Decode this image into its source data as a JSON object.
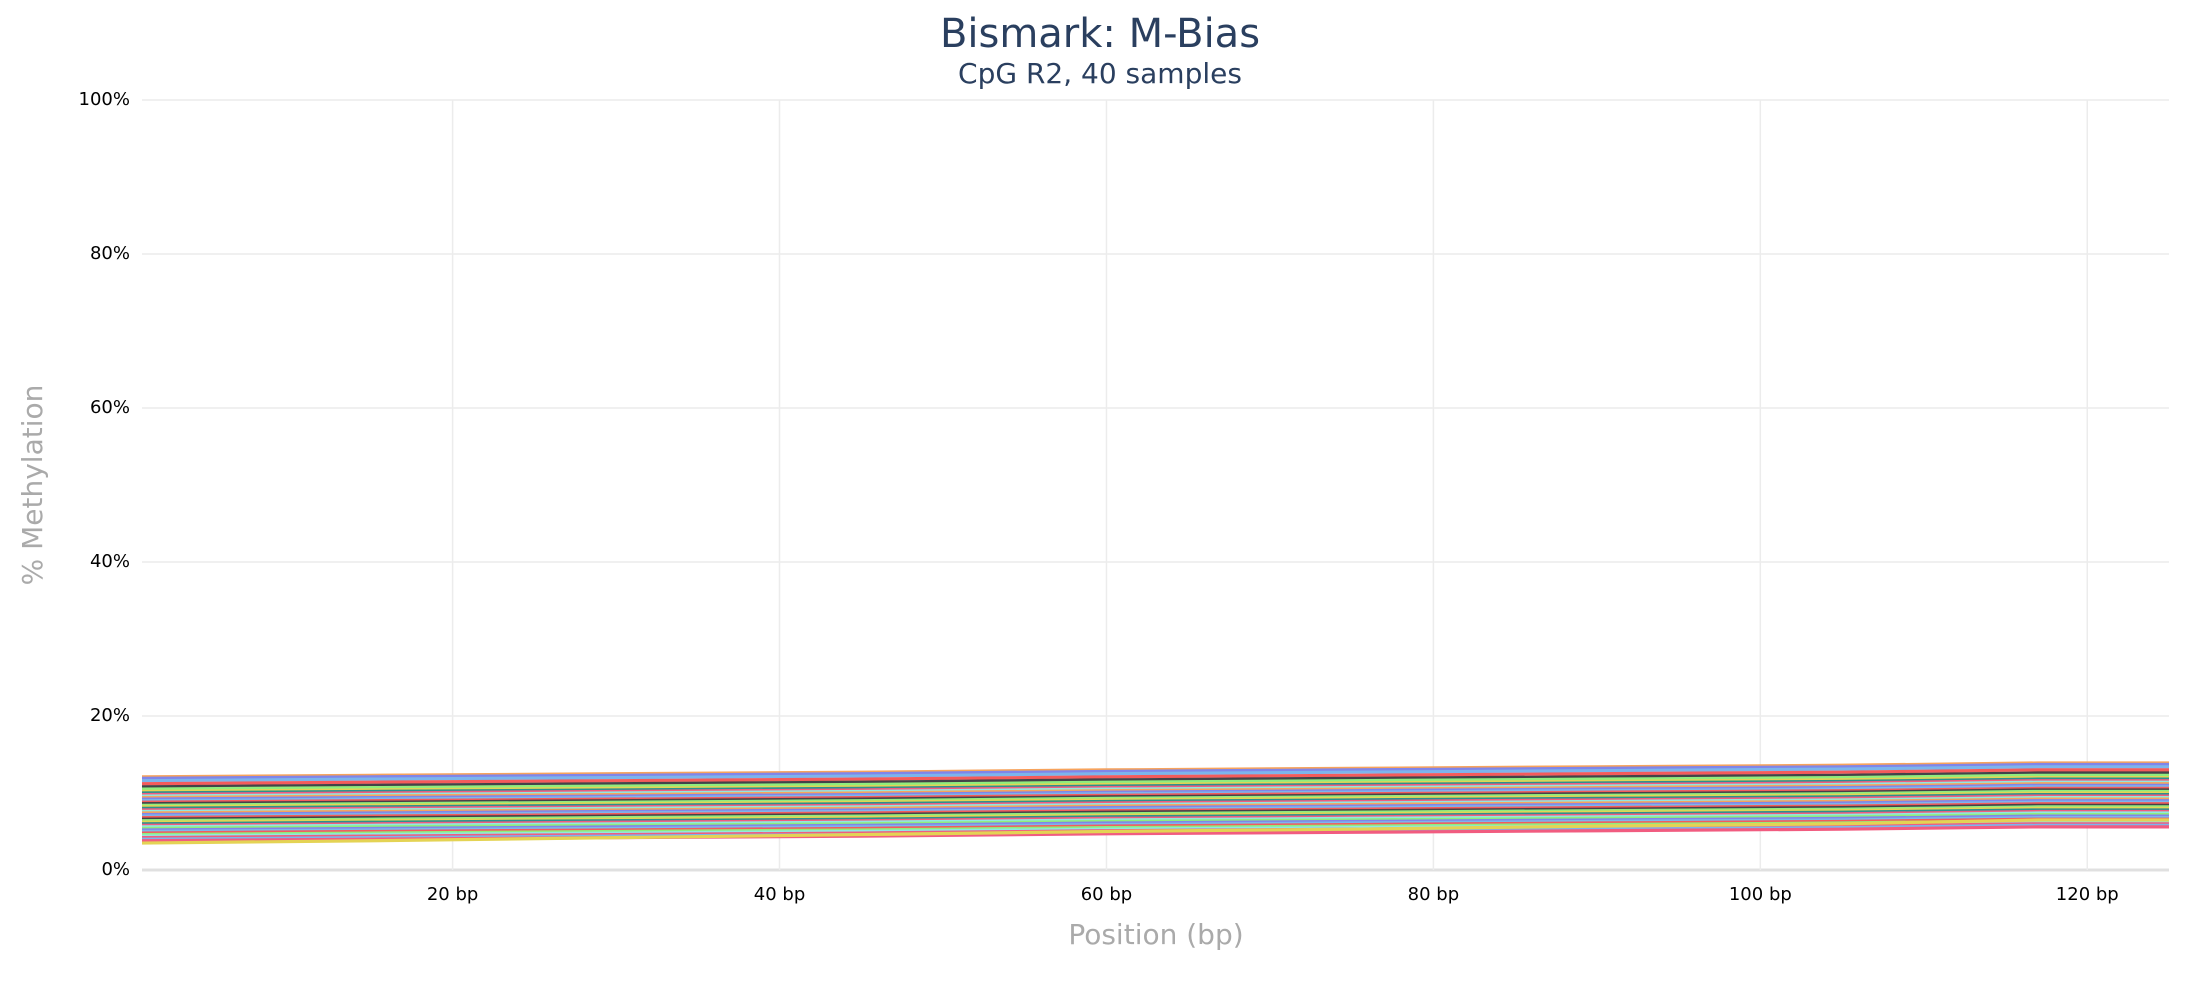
{
  "chart_data": {
    "type": "line",
    "title": "Bismark: M-Bias",
    "subtitle": "CpG R2, 40 samples",
    "x_label": "Position (bp)",
    "y_label": "% Methylation",
    "x": [
      1,
      15,
      30,
      45,
      60,
      75,
      90,
      105,
      117,
      125
    ],
    "xlim": [
      1,
      125
    ],
    "xticks": [
      {
        "value": 20,
        "label": "20 bp"
      },
      {
        "value": 40,
        "label": "40 bp"
      },
      {
        "value": 60,
        "label": "60 bp"
      },
      {
        "value": 80,
        "label": "80 bp"
      },
      {
        "value": 100,
        "label": "100 bp"
      },
      {
        "value": 120,
        "label": "120 bp"
      }
    ],
    "ylim": [
      0,
      100
    ],
    "yticks": [
      {
        "value": 0,
        "label": "0%"
      },
      {
        "value": 20,
        "label": "20%"
      },
      {
        "value": 40,
        "label": "40%"
      },
      {
        "value": 60,
        "label": "60%"
      },
      {
        "value": 80,
        "label": "80%"
      },
      {
        "value": 100,
        "label": "100%"
      }
    ],
    "grid": true,
    "series": [
      {
        "color": "#f7a35c",
        "values": [
          12.1,
          12.3,
          12.5,
          12.7,
          13.0,
          13.2,
          13.4,
          13.6,
          13.9,
          13.9
        ]
      },
      {
        "color": "#8085e9",
        "values": [
          11.9,
          12.1,
          12.3,
          12.5,
          12.8,
          13.0,
          13.2,
          13.4,
          13.7,
          13.7
        ]
      },
      {
        "color": "#7cb5ec",
        "values": [
          11.6,
          11.8,
          12.0,
          12.2,
          12.5,
          12.7,
          12.9,
          13.1,
          13.4,
          13.4
        ]
      },
      {
        "color": "#f45b5b",
        "values": [
          11.2,
          11.4,
          11.6,
          11.8,
          12.1,
          12.3,
          12.5,
          12.7,
          13.0,
          13.0
        ]
      },
      {
        "color": "#434348",
        "values": [
          10.8,
          11.0,
          11.2,
          11.4,
          11.7,
          11.9,
          12.1,
          12.3,
          12.6,
          12.6
        ]
      },
      {
        "color": "#90ed7d",
        "values": [
          10.5,
          10.7,
          10.9,
          11.1,
          11.4,
          11.6,
          11.8,
          12.0,
          12.3,
          12.3
        ]
      },
      {
        "color": "#e4d354",
        "values": [
          10.2,
          10.4,
          10.6,
          10.8,
          11.1,
          11.3,
          11.5,
          11.7,
          12.0,
          12.0
        ]
      },
      {
        "color": "#2b908f",
        "values": [
          10.0,
          10.2,
          10.4,
          10.6,
          10.9,
          11.1,
          11.3,
          11.5,
          11.8,
          11.8
        ]
      },
      {
        "color": "#f15c80",
        "values": [
          9.8,
          10.0,
          10.2,
          10.4,
          10.7,
          10.9,
          11.1,
          11.3,
          11.6,
          11.6
        ]
      },
      {
        "color": "#91e8e1",
        "values": [
          9.6,
          9.8,
          10.0,
          10.2,
          10.5,
          10.7,
          10.9,
          11.1,
          11.4,
          11.4
        ]
      },
      {
        "color": "#f7a35c",
        "values": [
          9.4,
          9.6,
          9.8,
          10.0,
          10.3,
          10.5,
          10.7,
          10.9,
          11.2,
          11.2
        ]
      },
      {
        "color": "#8085e9",
        "values": [
          9.2,
          9.4,
          9.6,
          9.8,
          10.1,
          10.3,
          10.5,
          10.7,
          11.0,
          11.0
        ]
      },
      {
        "color": "#7cb5ec",
        "values": [
          9.0,
          9.2,
          9.4,
          9.6,
          9.9,
          10.1,
          10.3,
          10.5,
          10.8,
          10.8
        ]
      },
      {
        "color": "#f45b5b",
        "values": [
          8.8,
          9.0,
          9.2,
          9.4,
          9.7,
          9.9,
          10.1,
          10.3,
          10.6,
          10.6
        ]
      },
      {
        "color": "#434348",
        "values": [
          8.6,
          8.8,
          9.0,
          9.2,
          9.5,
          9.7,
          9.9,
          10.1,
          10.4,
          10.4
        ]
      },
      {
        "color": "#90ed7d",
        "values": [
          8.4,
          8.6,
          8.8,
          9.0,
          9.3,
          9.5,
          9.7,
          9.9,
          10.2,
          10.2
        ]
      },
      {
        "color": "#e4d354",
        "values": [
          8.2,
          8.4,
          8.6,
          8.8,
          9.1,
          9.3,
          9.5,
          9.7,
          10.0,
          10.0
        ]
      },
      {
        "color": "#2b908f",
        "values": [
          8.0,
          8.2,
          8.4,
          8.6,
          8.9,
          9.1,
          9.3,
          9.5,
          9.8,
          9.8
        ]
      },
      {
        "color": "#f15c80",
        "values": [
          7.8,
          8.0,
          8.2,
          8.4,
          8.7,
          8.9,
          9.1,
          9.3,
          9.6,
          9.6
        ]
      },
      {
        "color": "#91e8e1",
        "values": [
          7.6,
          7.8,
          8.0,
          8.2,
          8.5,
          8.7,
          8.9,
          9.1,
          9.4,
          9.4
        ]
      },
      {
        "color": "#f7a35c",
        "values": [
          7.4,
          7.6,
          7.8,
          8.0,
          8.3,
          8.5,
          8.7,
          8.9,
          9.2,
          9.2
        ]
      },
      {
        "color": "#8085e9",
        "values": [
          7.2,
          7.4,
          7.6,
          7.8,
          8.1,
          8.3,
          8.5,
          8.7,
          9.0,
          9.0
        ]
      },
      {
        "color": "#7cb5ec",
        "values": [
          7.0,
          7.2,
          7.4,
          7.6,
          7.9,
          8.1,
          8.3,
          8.5,
          8.8,
          8.8
        ]
      },
      {
        "color": "#f45b5b",
        "values": [
          6.8,
          7.0,
          7.2,
          7.4,
          7.7,
          7.9,
          8.1,
          8.3,
          8.6,
          8.6
        ]
      },
      {
        "color": "#434348",
        "values": [
          6.6,
          6.8,
          7.0,
          7.2,
          7.5,
          7.7,
          7.9,
          8.1,
          8.4,
          8.4
        ]
      },
      {
        "color": "#90ed7d",
        "values": [
          6.4,
          6.6,
          6.8,
          7.0,
          7.3,
          7.5,
          7.7,
          7.9,
          8.2,
          8.2
        ]
      },
      {
        "color": "#e4d354",
        "values": [
          6.2,
          6.4,
          6.6,
          6.8,
          7.1,
          7.3,
          7.5,
          7.7,
          8.0,
          8.0
        ]
      },
      {
        "color": "#2b908f",
        "values": [
          6.0,
          6.2,
          6.4,
          6.6,
          6.9,
          7.1,
          7.3,
          7.5,
          7.8,
          7.8
        ]
      },
      {
        "color": "#f15c80",
        "values": [
          5.8,
          6.0,
          6.2,
          6.4,
          6.7,
          6.9,
          7.1,
          7.3,
          7.6,
          7.6
        ]
      },
      {
        "color": "#91e8e1",
        "values": [
          5.6,
          5.8,
          6.0,
          6.2,
          6.5,
          6.7,
          6.9,
          7.1,
          7.4,
          7.4
        ]
      },
      {
        "color": "#90ed7d",
        "values": [
          5.4,
          5.6,
          5.8,
          6.0,
          6.3,
          6.5,
          6.7,
          6.9,
          7.2,
          7.2
        ]
      },
      {
        "color": "#8085e9",
        "values": [
          5.2,
          5.4,
          5.6,
          5.8,
          6.1,
          6.3,
          6.5,
          6.7,
          7.0,
          7.0
        ]
      },
      {
        "color": "#7cb5ec",
        "values": [
          5.0,
          5.2,
          5.4,
          5.6,
          5.9,
          6.1,
          6.3,
          6.5,
          6.8,
          6.8
        ]
      },
      {
        "color": "#f45b5b",
        "values": [
          4.8,
          5.0,
          5.2,
          5.4,
          5.7,
          5.9,
          6.1,
          6.3,
          6.6,
          6.6
        ]
      },
      {
        "color": "#90ed7d",
        "values": [
          4.6,
          4.8,
          5.0,
          5.2,
          5.5,
          5.7,
          5.9,
          6.1,
          6.4,
          6.4
        ]
      },
      {
        "color": "#91e8e1",
        "values": [
          4.4,
          4.6,
          4.8,
          5.0,
          5.3,
          5.5,
          5.7,
          5.9,
          6.2,
          6.2
        ]
      },
      {
        "color": "#f15c80",
        "values": [
          4.2,
          4.4,
          4.6,
          4.8,
          5.1,
          5.3,
          5.5,
          5.7,
          6.0,
          6.0
        ]
      },
      {
        "color": "#7cb5ec",
        "values": [
          4.0,
          4.2,
          4.4,
          4.6,
          4.9,
          5.1,
          5.3,
          5.5,
          5.8,
          5.8
        ]
      },
      {
        "color": "#f15c80",
        "values": [
          3.8,
          4.0,
          4.2,
          4.4,
          4.7,
          4.9,
          5.1,
          5.3,
          5.6,
          5.6
        ]
      },
      {
        "color": "#e4d354",
        "values": [
          3.5,
          3.8,
          4.2,
          4.6,
          5.0,
          5.3,
          5.7,
          6.0,
          6.5,
          6.5
        ]
      }
    ]
  }
}
